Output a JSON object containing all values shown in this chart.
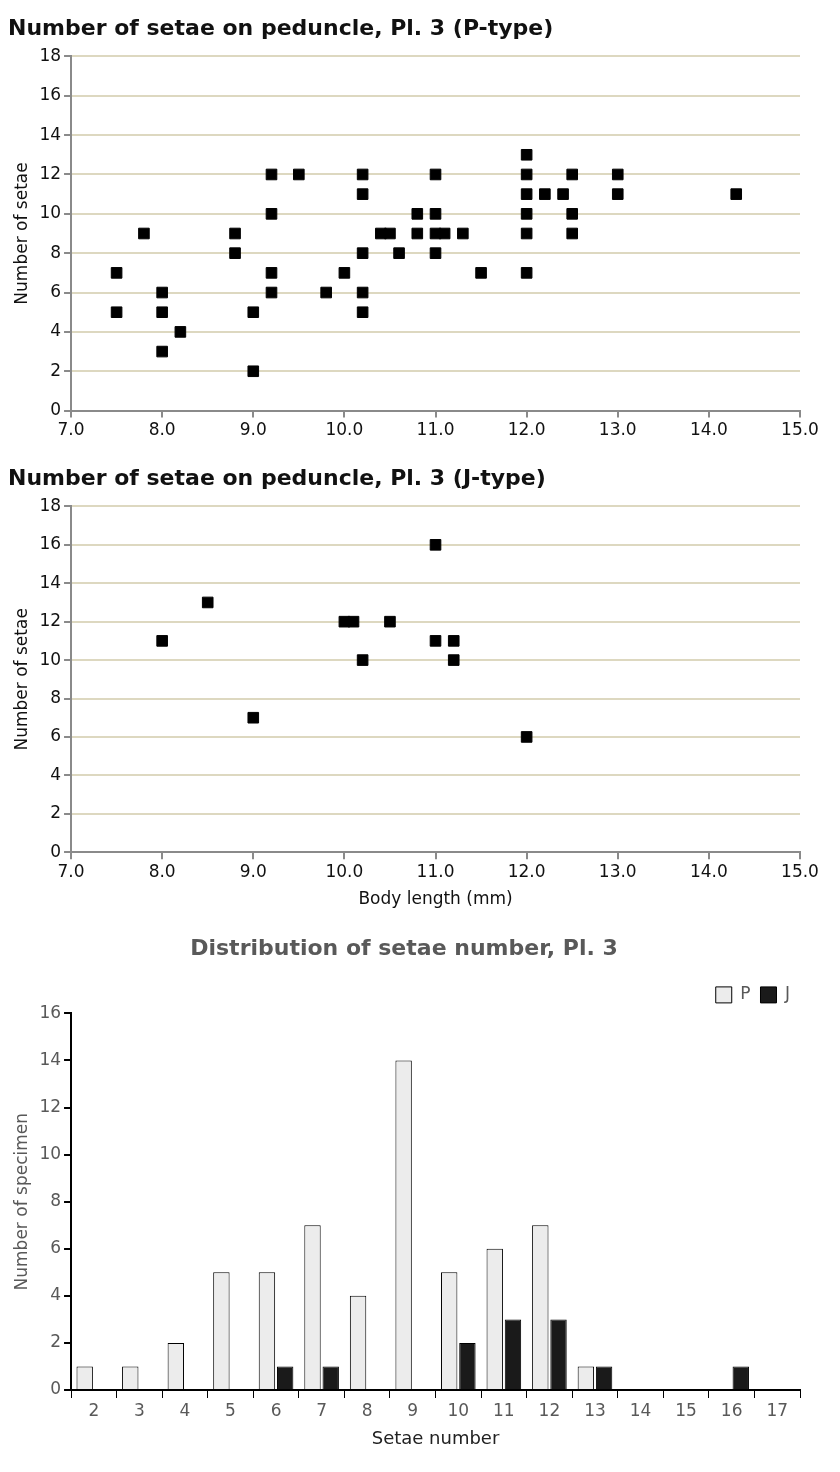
{
  "chart_data": [
    {
      "type": "scatter",
      "title": "Number of setae on peduncle, Pl. 3 (P-type)",
      "ylabel": "Number of setae",
      "marker": "square",
      "grid": "y",
      "x": [
        7.5,
        7.5,
        7.8,
        8.0,
        8.0,
        8.0,
        8.2,
        8.8,
        8.8,
        9.0,
        9.0,
        9.2,
        9.2,
        9.2,
        9.2,
        9.5,
        9.8,
        10.0,
        10.2,
        10.2,
        10.2,
        10.2,
        10.2,
        10.4,
        10.5,
        10.6,
        10.8,
        10.8,
        11.0,
        11.0,
        11.0,
        11.0,
        11.1,
        11.3,
        11.5,
        12.0,
        12.0,
        12.0,
        12.0,
        12.0,
        12.0,
        12.2,
        12.4,
        12.5,
        12.5,
        12.5,
        13.0,
        13.0,
        14.3
      ],
      "values": [
        7,
        5,
        9,
        6,
        5,
        3,
        4,
        9,
        8,
        5,
        2,
        12,
        10,
        7,
        6,
        12,
        6,
        7,
        12,
        11,
        8,
        6,
        5,
        9,
        9,
        8,
        10,
        9,
        12,
        10,
        9,
        8,
        9,
        9,
        7,
        13,
        12,
        11,
        10,
        9,
        7,
        11,
        11,
        12,
        10,
        9,
        12,
        11,
        11
      ],
      "color": "#000000",
      "xlim": [
        7,
        15
      ],
      "xticks": [
        {
          "value": 7,
          "label": "7.0"
        },
        {
          "value": 8,
          "label": "8.0"
        },
        {
          "value": 9,
          "label": "9.0"
        },
        {
          "value": 10,
          "label": "10.0"
        },
        {
          "value": 11,
          "label": "11.0"
        },
        {
          "value": 12,
          "label": "12.0"
        },
        {
          "value": 13,
          "label": "13.0"
        },
        {
          "value": 14,
          "label": "14.0"
        },
        {
          "value": 15,
          "label": "15.0"
        }
      ],
      "ylim": [
        0,
        18
      ],
      "yticks": [
        0,
        2,
        4,
        6,
        8,
        10,
        12,
        14,
        16,
        18
      ]
    },
    {
      "type": "scatter",
      "title": "Number of setae on peduncle, Pl. 3 (J-type)",
      "xlabel": "Body length (mm)",
      "ylabel": "Number of setae",
      "marker": "square",
      "grid": "y",
      "x": [
        8.0,
        8.5,
        9.0,
        10.0,
        10.1,
        10.2,
        10.5,
        11.0,
        11.0,
        11.2,
        11.2,
        12.0
      ],
      "values": [
        11,
        13,
        7,
        12,
        12,
        10,
        12,
        16,
        11,
        11,
        10,
        6
      ],
      "color": "#000000",
      "xlim": [
        7,
        15
      ],
      "xticks": [
        {
          "value": 7,
          "label": "7.0"
        },
        {
          "value": 8,
          "label": "8.0"
        },
        {
          "value": 9,
          "label": "9.0"
        },
        {
          "value": 10,
          "label": "10.0"
        },
        {
          "value": 11,
          "label": "11.0"
        },
        {
          "value": 12,
          "label": "12.0"
        },
        {
          "value": 13,
          "label": "13.0"
        },
        {
          "value": 14,
          "label": "14.0"
        },
        {
          "value": 15,
          "label": "15.0"
        }
      ],
      "ylim": [
        0,
        18
      ],
      "yticks": [
        0,
        2,
        4,
        6,
        8,
        10,
        12,
        14,
        16,
        18
      ]
    },
    {
      "type": "bar",
      "title": "Distribution of setae number, Pl. 3",
      "xlabel": "Setae number",
      "ylabel": "Number of specimen",
      "legend": "top right",
      "grid": false,
      "categories": [
        "2",
        "3",
        "4",
        "5",
        "6",
        "7",
        "8",
        "9",
        "10",
        "11",
        "12",
        "13",
        "14",
        "15",
        "16",
        "17"
      ],
      "series": [
        {
          "name": "P",
          "color": "#ececec",
          "values": [
            1,
            1,
            2,
            5,
            5,
            7,
            4,
            14,
            5,
            6,
            7,
            1,
            null,
            null,
            null,
            null
          ]
        },
        {
          "name": "J",
          "color": "#1a1a1a",
          "values": [
            null,
            null,
            null,
            null,
            1,
            1,
            null,
            null,
            2,
            3,
            3,
            1,
            null,
            null,
            1,
            null
          ]
        }
      ],
      "ylim": [
        0,
        16
      ],
      "yticks": [
        0,
        2,
        4,
        6,
        8,
        10,
        12,
        14,
        16
      ]
    }
  ]
}
